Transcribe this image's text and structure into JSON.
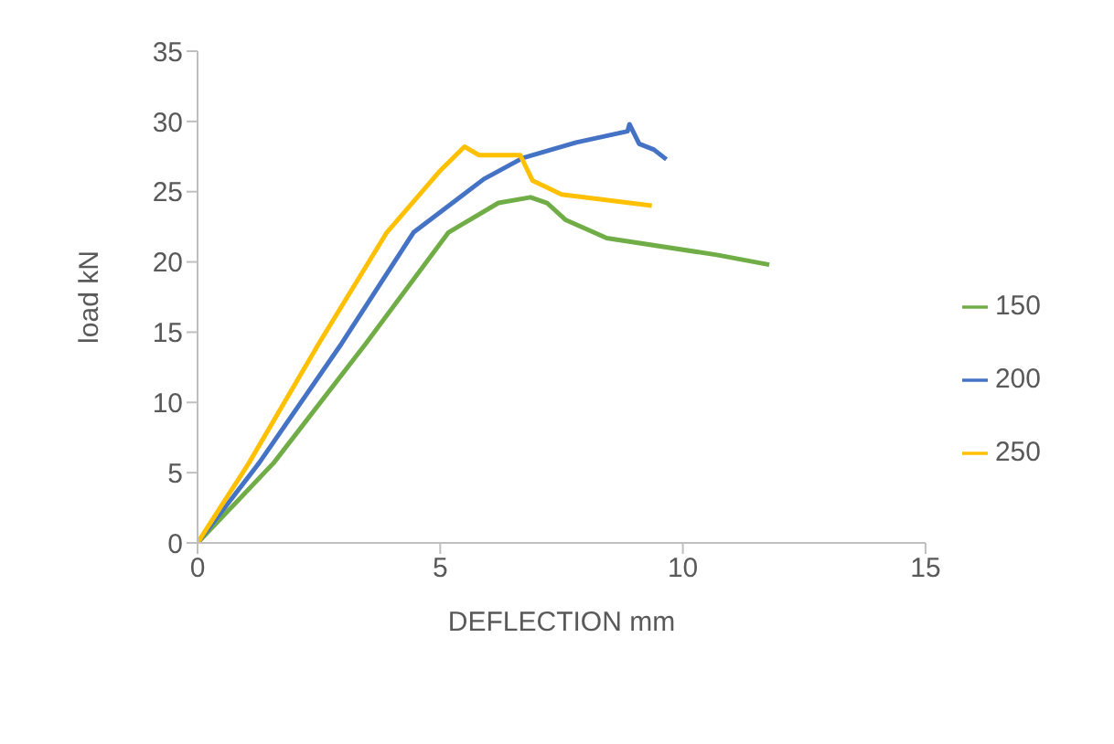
{
  "chart_data": {
    "type": "line",
    "xlabel": "DEFLECTION mm",
    "ylabel": "load kN",
    "xlim": [
      0,
      15
    ],
    "xticks": [
      0,
      5,
      10,
      15
    ],
    "ylim": [
      0,
      35
    ],
    "yticks": [
      0,
      5,
      10,
      15,
      20,
      25,
      30,
      35
    ],
    "grid": false,
    "legend": "right",
    "marker": "none",
    "line_style": "solid",
    "series": [
      {
        "name": "150",
        "color": "#70ad47",
        "x": [
          0,
          1.57,
          3.47,
          5.17,
          6.2,
          6.86,
          7.2,
          7.58,
          8.43,
          10.7,
          11.78
        ],
        "values": [
          0,
          5.7,
          14.2,
          22.1,
          24.2,
          24.6,
          24.2,
          23.0,
          21.7,
          20.5,
          19.8
        ]
      },
      {
        "name": "200",
        "color": "#4472c4",
        "x": [
          0,
          1.27,
          2.97,
          4.45,
          5.9,
          6.7,
          7.8,
          8.86,
          8.9,
          9.1,
          9.4,
          9.66
        ],
        "values": [
          0,
          5.7,
          14.2,
          22.1,
          25.9,
          27.4,
          28.5,
          29.3,
          29.8,
          28.4,
          28.0,
          27.3
        ]
      },
      {
        "name": "250",
        "color": "#ffc000",
        "x": [
          0,
          1.06,
          2.5,
          3.9,
          5.0,
          5.5,
          5.8,
          6.65,
          6.9,
          7.5,
          9.36
        ],
        "values": [
          0,
          5.7,
          14.2,
          22.1,
          26.5,
          28.2,
          27.6,
          27.6,
          25.8,
          24.8,
          24.0
        ]
      }
    ]
  }
}
